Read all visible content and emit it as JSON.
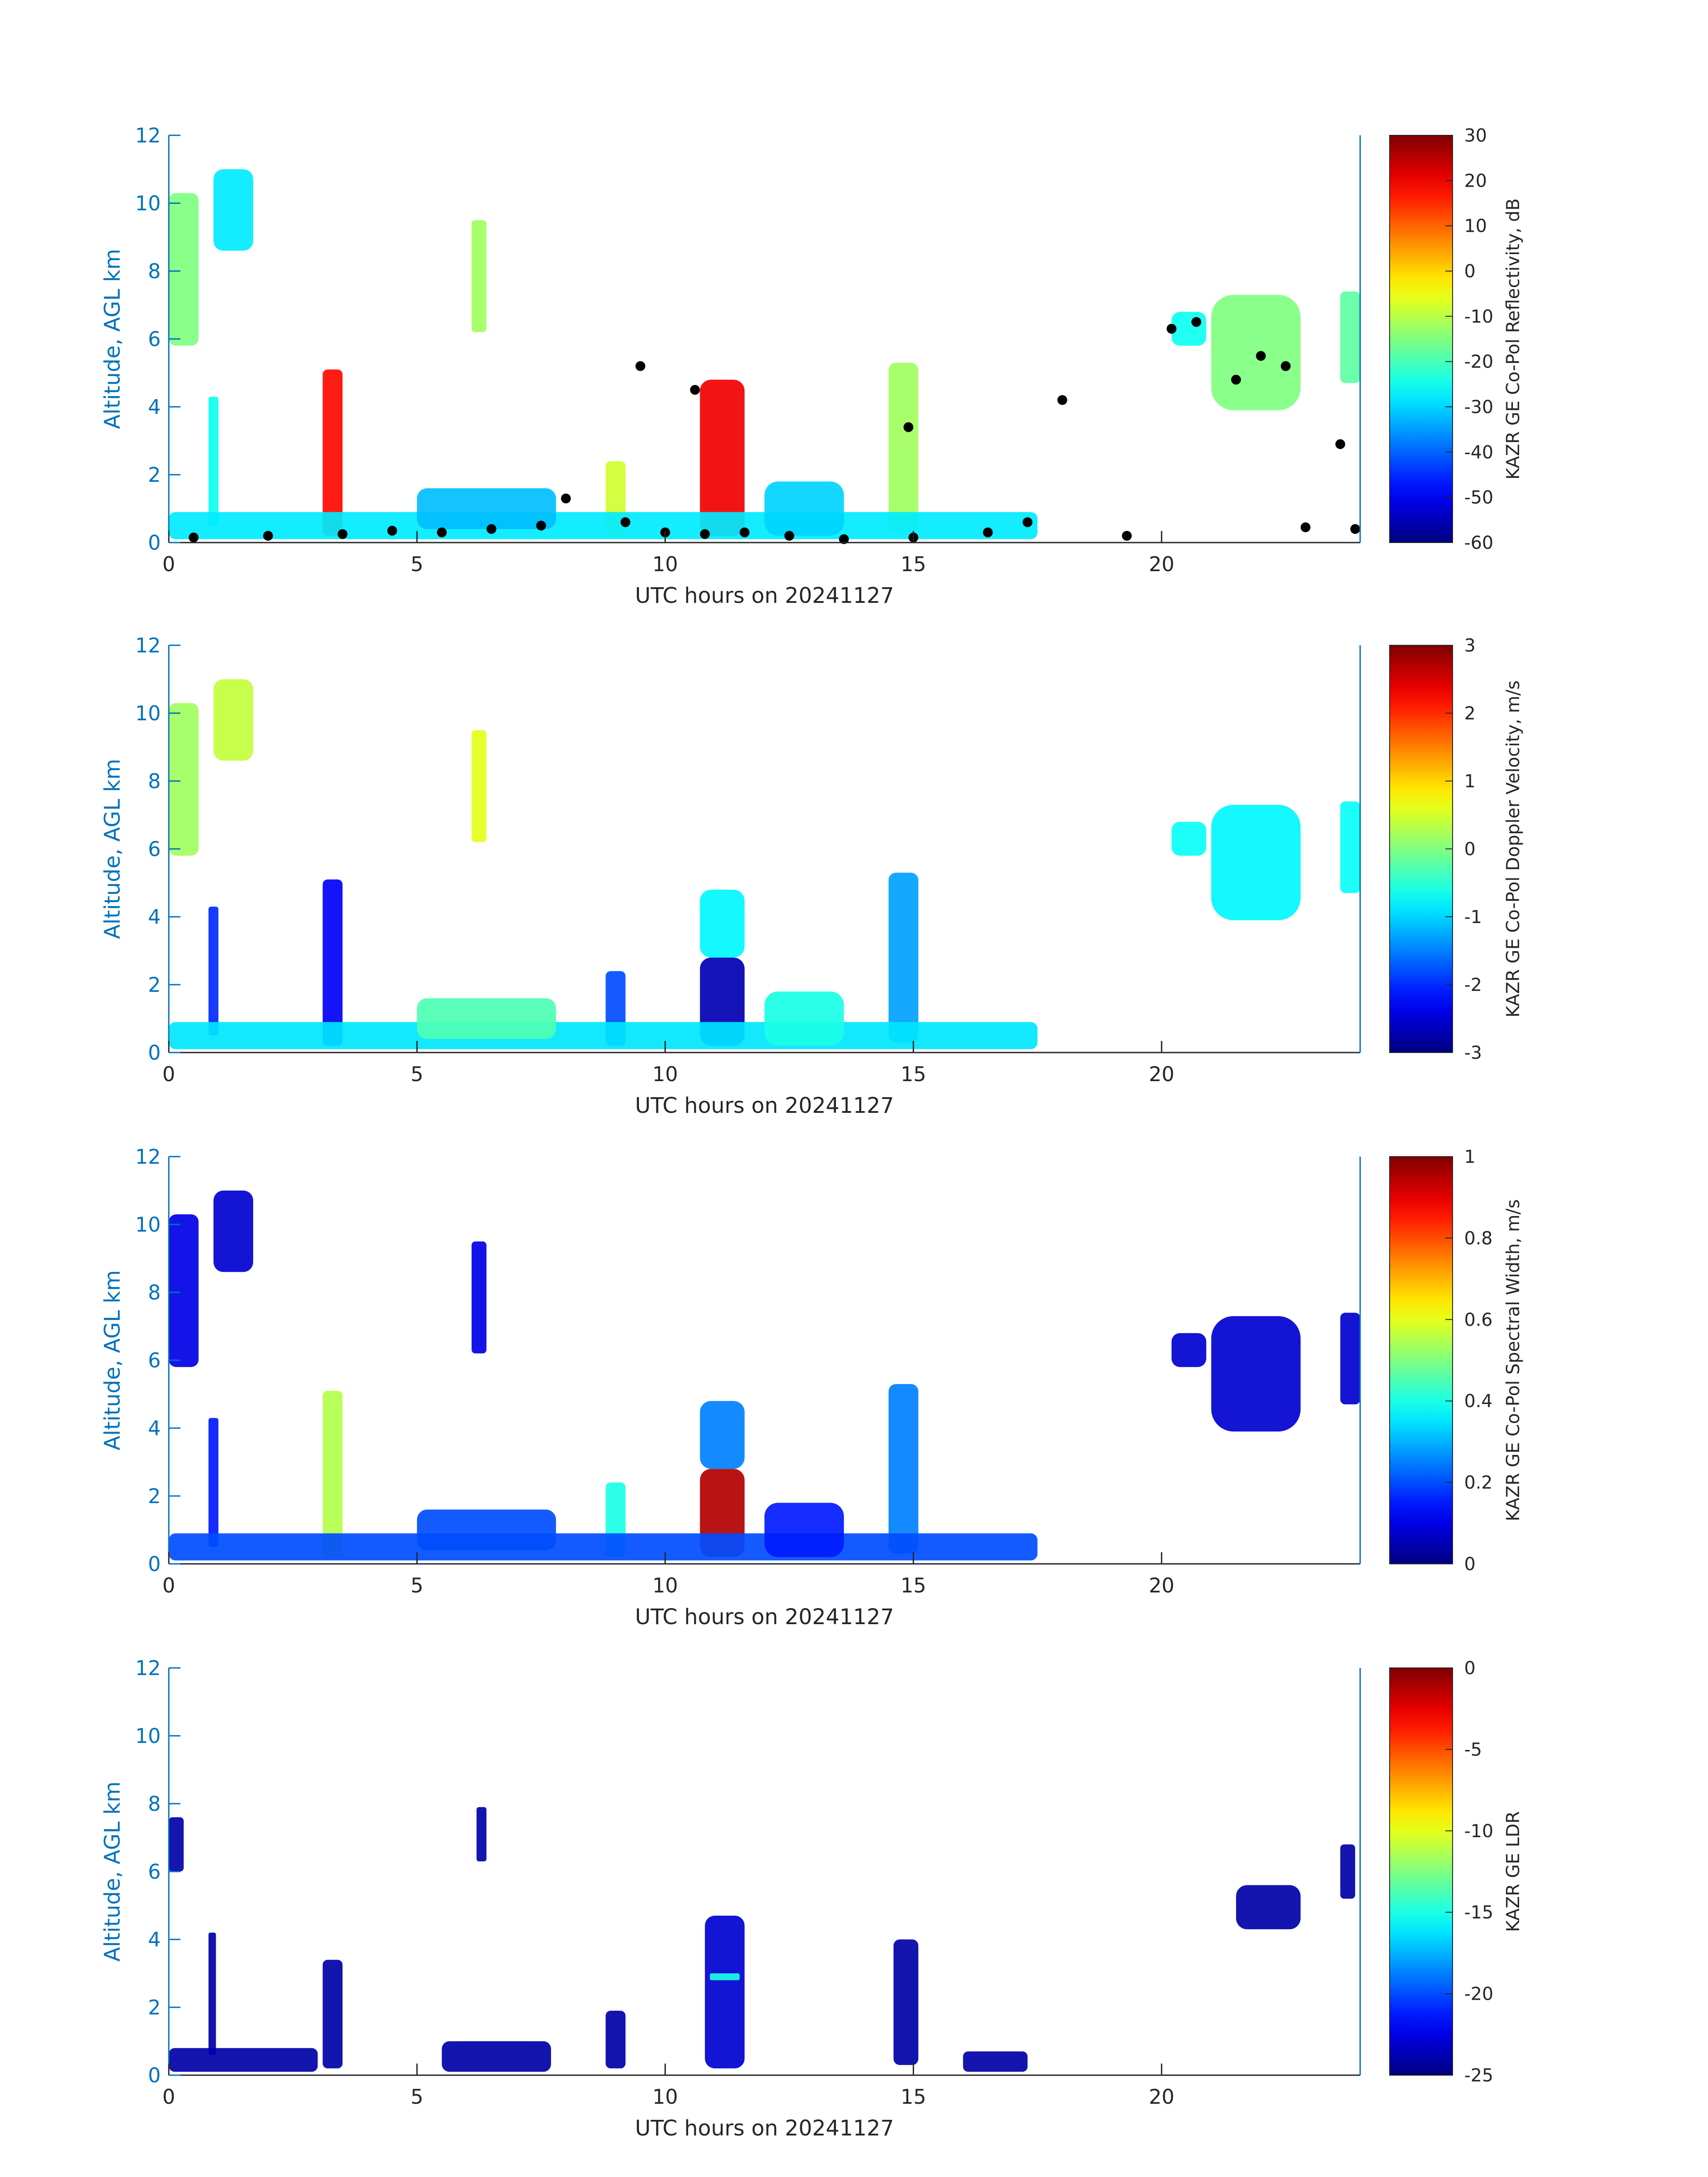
{
  "figure": {
    "colormap": "jet",
    "axis_color": "#0072BD",
    "text_color": "#262626",
    "cloud_mask_color": "#000000"
  },
  "chart_data": [
    {
      "id": "reflectivity",
      "type": "heatmap",
      "xlabel": "UTC hours on 20241127",
      "ylabel": "Altitude, AGL km",
      "xlim": [
        0,
        24
      ],
      "ylim": [
        0,
        12
      ],
      "xticks": [
        0,
        5,
        10,
        15,
        20
      ],
      "yticks": [
        0,
        2,
        4,
        6,
        8,
        10,
        12
      ],
      "colorbar": {
        "label": "KAZR GE Co-Pol Reflectivity, dB",
        "range": [
          -60,
          30
        ],
        "ticks": [
          30,
          20,
          10,
          0,
          -10,
          -20,
          -30,
          -40,
          -50,
          -60
        ]
      },
      "features": [
        {
          "x0": 0.0,
          "x1": 0.6,
          "y0": 5.8,
          "y1": 10.3,
          "value": -15
        },
        {
          "x0": 0.9,
          "x1": 1.7,
          "y0": 8.6,
          "y1": 11.0,
          "value": -28
        },
        {
          "x0": 6.1,
          "x1": 6.4,
          "y0": 6.2,
          "y1": 9.5,
          "value": -12
        },
        {
          "x0": 3.1,
          "x1": 3.5,
          "y0": 0.2,
          "y1": 5.1,
          "value": 18
        },
        {
          "x0": 0.8,
          "x1": 1.0,
          "y0": 0.5,
          "y1": 4.3,
          "value": -25
        },
        {
          "x0": 10.7,
          "x1": 11.6,
          "y0": 0.2,
          "y1": 4.8,
          "value": 20
        },
        {
          "x0": 14.5,
          "x1": 15.1,
          "y0": 0.3,
          "y1": 5.3,
          "value": -12
        },
        {
          "x0": 8.8,
          "x1": 9.2,
          "y0": 0.2,
          "y1": 2.4,
          "value": -8
        },
        {
          "x0": 0.0,
          "x1": 17.5,
          "y0": 0.1,
          "y1": 0.9,
          "value": -28
        },
        {
          "x0": 5.0,
          "x1": 7.8,
          "y0": 0.4,
          "y1": 1.6,
          "value": -32
        },
        {
          "x0": 12.0,
          "x1": 13.6,
          "y0": 0.2,
          "y1": 1.8,
          "value": -30
        },
        {
          "x0": 20.2,
          "x1": 20.9,
          "y0": 5.8,
          "y1": 6.8,
          "value": -25
        },
        {
          "x0": 21.0,
          "x1": 22.8,
          "y0": 3.9,
          "y1": 7.3,
          "value": -15
        },
        {
          "x0": 23.6,
          "x1": 24.0,
          "y0": 4.7,
          "y1": 7.4,
          "value": -18
        }
      ],
      "cloud_base_points": [
        {
          "x": 0.5,
          "y": 0.15
        },
        {
          "x": 2.0,
          "y": 0.2
        },
        {
          "x": 3.5,
          "y": 0.25
        },
        {
          "x": 4.5,
          "y": 0.35
        },
        {
          "x": 5.5,
          "y": 0.3
        },
        {
          "x": 6.5,
          "y": 0.4
        },
        {
          "x": 7.5,
          "y": 0.5
        },
        {
          "x": 8.0,
          "y": 1.3
        },
        {
          "x": 9.2,
          "y": 0.6
        },
        {
          "x": 10.0,
          "y": 0.3
        },
        {
          "x": 10.8,
          "y": 0.25
        },
        {
          "x": 11.6,
          "y": 0.3
        },
        {
          "x": 12.5,
          "y": 0.2
        },
        {
          "x": 13.6,
          "y": 0.1
        },
        {
          "x": 15.0,
          "y": 0.15
        },
        {
          "x": 16.5,
          "y": 0.3
        },
        {
          "x": 17.3,
          "y": 0.6
        },
        {
          "x": 18.0,
          "y": 4.2
        },
        {
          "x": 19.3,
          "y": 0.2
        },
        {
          "x": 20.2,
          "y": 6.3
        },
        {
          "x": 20.7,
          "y": 6.5
        },
        {
          "x": 21.5,
          "y": 4.8
        },
        {
          "x": 22.0,
          "y": 5.5
        },
        {
          "x": 22.5,
          "y": 5.2
        },
        {
          "x": 22.9,
          "y": 0.45
        },
        {
          "x": 23.6,
          "y": 2.9
        },
        {
          "x": 9.5,
          "y": 5.2
        },
        {
          "x": 10.6,
          "y": 4.5
        },
        {
          "x": 14.9,
          "y": 3.4
        },
        {
          "x": 23.9,
          "y": 0.4
        }
      ]
    },
    {
      "id": "doppler-velocity",
      "type": "heatmap",
      "xlabel": "UTC hours on 20241127",
      "ylabel": "Altitude, AGL km",
      "xlim": [
        0,
        24
      ],
      "ylim": [
        0,
        12
      ],
      "xticks": [
        0,
        5,
        10,
        15,
        20
      ],
      "yticks": [
        0,
        2,
        4,
        6,
        8,
        10,
        12
      ],
      "colorbar": {
        "label": "KAZR GE Co-Pol Doppler Velocity, m/s",
        "range": [
          -3,
          3
        ],
        "ticks": [
          3,
          2,
          1,
          0,
          -1,
          -2,
          -3
        ]
      },
      "features": [
        {
          "x0": 0.0,
          "x1": 0.6,
          "y0": 5.8,
          "y1": 10.3,
          "value": 0.2
        },
        {
          "x0": 0.9,
          "x1": 1.7,
          "y0": 8.6,
          "y1": 11.0,
          "value": 0.4
        },
        {
          "x0": 6.1,
          "x1": 6.4,
          "y0": 6.2,
          "y1": 9.5,
          "value": 0.6
        },
        {
          "x0": 3.1,
          "x1": 3.5,
          "y0": 0.2,
          "y1": 5.1,
          "value": -2.3
        },
        {
          "x0": 0.8,
          "x1": 1.0,
          "y0": 0.5,
          "y1": 4.3,
          "value": -2.0
        },
        {
          "x0": 10.7,
          "x1": 11.6,
          "y0": 0.2,
          "y1": 2.8,
          "value": -2.7
        },
        {
          "x0": 10.7,
          "x1": 11.6,
          "y0": 2.8,
          "y1": 4.8,
          "value": -0.8
        },
        {
          "x0": 14.5,
          "x1": 15.1,
          "y0": 0.3,
          "y1": 5.3,
          "value": -1.3
        },
        {
          "x0": 8.8,
          "x1": 9.2,
          "y0": 0.2,
          "y1": 2.4,
          "value": -1.8
        },
        {
          "x0": 0.0,
          "x1": 17.5,
          "y0": 0.1,
          "y1": 0.9,
          "value": -0.9
        },
        {
          "x0": 5.0,
          "x1": 7.8,
          "y0": 0.4,
          "y1": 1.6,
          "value": -0.3
        },
        {
          "x0": 12.0,
          "x1": 13.6,
          "y0": 0.2,
          "y1": 1.8,
          "value": -0.6
        },
        {
          "x0": 20.2,
          "x1": 20.9,
          "y0": 5.8,
          "y1": 6.8,
          "value": -0.7
        },
        {
          "x0": 21.0,
          "x1": 22.8,
          "y0": 3.9,
          "y1": 7.3,
          "value": -0.8
        },
        {
          "x0": 23.6,
          "x1": 24.0,
          "y0": 4.7,
          "y1": 7.4,
          "value": -0.7
        }
      ]
    },
    {
      "id": "spectral-width",
      "type": "heatmap",
      "xlabel": "UTC hours on 20241127",
      "ylabel": "Altitude, AGL km",
      "xlim": [
        0,
        24
      ],
      "ylim": [
        0,
        12
      ],
      "xticks": [
        0,
        5,
        10,
        15,
        20
      ],
      "yticks": [
        0,
        2,
        4,
        6,
        8,
        10,
        12
      ],
      "colorbar": {
        "label": "KAZR GE Co-Pol Spectral Width, m/s",
        "range": [
          0,
          1
        ],
        "ticks": [
          1,
          0.8,
          0.6,
          0.4,
          0.2,
          0
        ]
      },
      "features": [
        {
          "x0": 0.0,
          "x1": 0.6,
          "y0": 5.8,
          "y1": 10.3,
          "value": 0.1
        },
        {
          "x0": 0.9,
          "x1": 1.7,
          "y0": 8.6,
          "y1": 11.0,
          "value": 0.08
        },
        {
          "x0": 6.1,
          "x1": 6.4,
          "y0": 6.2,
          "y1": 9.5,
          "value": 0.1
        },
        {
          "x0": 3.1,
          "x1": 3.5,
          "y0": 0.2,
          "y1": 5.1,
          "value": 0.55
        },
        {
          "x0": 0.8,
          "x1": 1.0,
          "y0": 0.5,
          "y1": 4.3,
          "value": 0.15
        },
        {
          "x0": 10.7,
          "x1": 11.6,
          "y0": 0.2,
          "y1": 2.8,
          "value": 0.95
        },
        {
          "x0": 10.7,
          "x1": 11.6,
          "y0": 2.8,
          "y1": 4.8,
          "value": 0.25
        },
        {
          "x0": 14.5,
          "x1": 15.1,
          "y0": 0.3,
          "y1": 5.3,
          "value": 0.25
        },
        {
          "x0": 8.8,
          "x1": 9.2,
          "y0": 0.2,
          "y1": 2.4,
          "value": 0.4
        },
        {
          "x0": 0.0,
          "x1": 17.5,
          "y0": 0.1,
          "y1": 0.9,
          "value": 0.2
        },
        {
          "x0": 5.0,
          "x1": 7.8,
          "y0": 0.4,
          "y1": 1.6,
          "value": 0.2
        },
        {
          "x0": 12.0,
          "x1": 13.6,
          "y0": 0.2,
          "y1": 1.8,
          "value": 0.15
        },
        {
          "x0": 20.2,
          "x1": 20.9,
          "y0": 5.8,
          "y1": 6.8,
          "value": 0.08
        },
        {
          "x0": 21.0,
          "x1": 22.8,
          "y0": 3.9,
          "y1": 7.3,
          "value": 0.08
        },
        {
          "x0": 23.6,
          "x1": 24.0,
          "y0": 4.7,
          "y1": 7.4,
          "value": 0.08
        }
      ]
    },
    {
      "id": "ldr",
      "type": "heatmap",
      "xlabel": "UTC hours on 20241127",
      "ylabel": "Altitude, AGL km",
      "xlim": [
        0,
        24
      ],
      "ylim": [
        0,
        12
      ],
      "xticks": [
        0,
        5,
        10,
        15,
        20
      ],
      "yticks": [
        0,
        2,
        4,
        6,
        8,
        10,
        12
      ],
      "colorbar": {
        "label": "KAZR GE LDR",
        "range": [
          -25,
          0
        ],
        "ticks": [
          0,
          -5,
          -10,
          -15,
          -20,
          -25
        ]
      },
      "features": [
        {
          "x0": 0.0,
          "x1": 0.3,
          "y0": 6.0,
          "y1": 7.6,
          "value": -24
        },
        {
          "x0": 6.2,
          "x1": 6.4,
          "y0": 6.3,
          "y1": 7.9,
          "value": -24
        },
        {
          "x0": 3.1,
          "x1": 3.5,
          "y0": 0.2,
          "y1": 3.4,
          "value": -24
        },
        {
          "x0": 0.8,
          "x1": 0.95,
          "y0": 0.6,
          "y1": 4.2,
          "value": -24
        },
        {
          "x0": 10.8,
          "x1": 11.6,
          "y0": 0.2,
          "y1": 4.7,
          "value": -23
        },
        {
          "x0": 10.9,
          "x1": 11.5,
          "y0": 2.8,
          "y1": 3.0,
          "value": -15
        },
        {
          "x0": 14.6,
          "x1": 15.1,
          "y0": 0.3,
          "y1": 4.0,
          "value": -24
        },
        {
          "x0": 8.8,
          "x1": 9.2,
          "y0": 0.2,
          "y1": 1.9,
          "value": -24
        },
        {
          "x0": 0.0,
          "x1": 3.0,
          "y0": 0.1,
          "y1": 0.8,
          "value": -24
        },
        {
          "x0": 5.5,
          "x1": 7.7,
          "y0": 0.1,
          "y1": 1.0,
          "value": -24
        },
        {
          "x0": 16.0,
          "x1": 17.3,
          "y0": 0.1,
          "y1": 0.7,
          "value": -24
        },
        {
          "x0": 21.5,
          "x1": 22.8,
          "y0": 4.3,
          "y1": 5.6,
          "value": -24
        },
        {
          "x0": 23.6,
          "x1": 23.9,
          "y0": 5.2,
          "y1": 6.8,
          "value": -24
        }
      ]
    }
  ]
}
